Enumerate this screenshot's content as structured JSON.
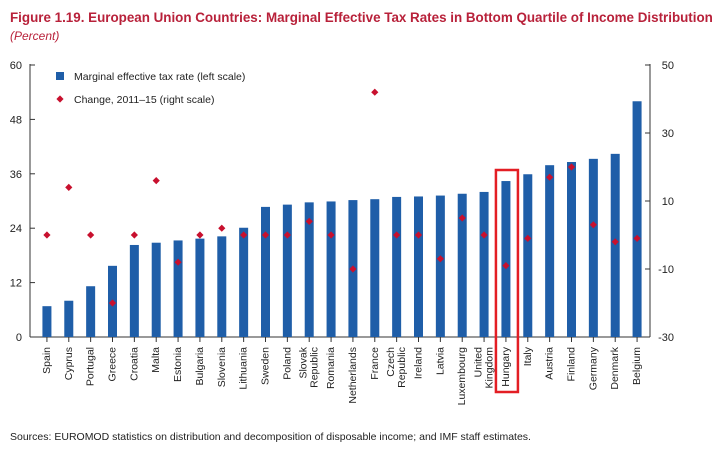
{
  "header": {
    "title": "Figure 1.19. European Union Countries: Marginal Effective Tax Rates in Bottom Quartile of Income Distribution",
    "subtitle": "(Percent)"
  },
  "footer": {
    "source": "Sources: EUROMOD statistics on distribution and decomposition of disposable income; and IMF staff estimates."
  },
  "chart_data": {
    "type": "bar",
    "title": "European Union Countries: Marginal Effective Tax Rates in Bottom Quartile of Income Distribution",
    "unit": "Percent",
    "highlighted_category": "Hungary",
    "highlight_color": "#e31e24",
    "categories": [
      [
        "Spain"
      ],
      [
        "Cyprus"
      ],
      [
        "Portugal"
      ],
      [
        "Greece"
      ],
      [
        "Croatia"
      ],
      [
        "Malta"
      ],
      [
        "Estonia"
      ],
      [
        "Bulgaria"
      ],
      [
        "Slovenia"
      ],
      [
        "Lithuania"
      ],
      [
        "Sweden"
      ],
      [
        "Poland"
      ],
      [
        "Slovak",
        "Republic"
      ],
      [
        "Romania"
      ],
      [
        "Netherlands"
      ],
      [
        "France"
      ],
      [
        "Czech",
        "Republic"
      ],
      [
        "Ireland"
      ],
      [
        "Latvia"
      ],
      [
        "Luxembourg"
      ],
      [
        "United",
        "Kingdom"
      ],
      [
        "Hungary"
      ],
      [
        "Italy"
      ],
      [
        "Austria"
      ],
      [
        "Finland"
      ],
      [
        "Germany"
      ],
      [
        "Denmark"
      ],
      [
        "Belgium"
      ]
    ],
    "series": [
      {
        "name": "Marginal effective tax rate (left scale)",
        "type": "bar",
        "axis": "left",
        "color": "#1f5ea8",
        "values": [
          6.8,
          8.0,
          11.2,
          15.7,
          20.3,
          20.8,
          21.3,
          21.7,
          22.2,
          24.1,
          28.7,
          29.2,
          29.7,
          29.9,
          30.2,
          30.4,
          30.9,
          31.0,
          31.2,
          31.6,
          32.0,
          34.4,
          35.9,
          37.9,
          38.6,
          39.3,
          40.4,
          52.0
        ]
      },
      {
        "name": "Change, 2011–15 (right scale)",
        "type": "scatter",
        "axis": "right",
        "color": "#c8102e",
        "values": [
          0,
          14,
          0,
          -20,
          0,
          16,
          -8,
          0,
          2,
          0,
          0,
          0,
          4,
          0,
          -10,
          42,
          0,
          0,
          -7,
          5,
          0,
          -9,
          -1,
          17,
          20,
          3,
          -2,
          -1
        ]
      }
    ],
    "y_left": {
      "ylim": [
        0,
        60
      ],
      "ticks": [
        0,
        12,
        24,
        36,
        48,
        60
      ]
    },
    "y_right": {
      "ylim": [
        -30,
        50
      ],
      "ticks": [
        -30,
        -10,
        10,
        30,
        50
      ]
    },
    "legend": {
      "position": "top-left"
    }
  }
}
